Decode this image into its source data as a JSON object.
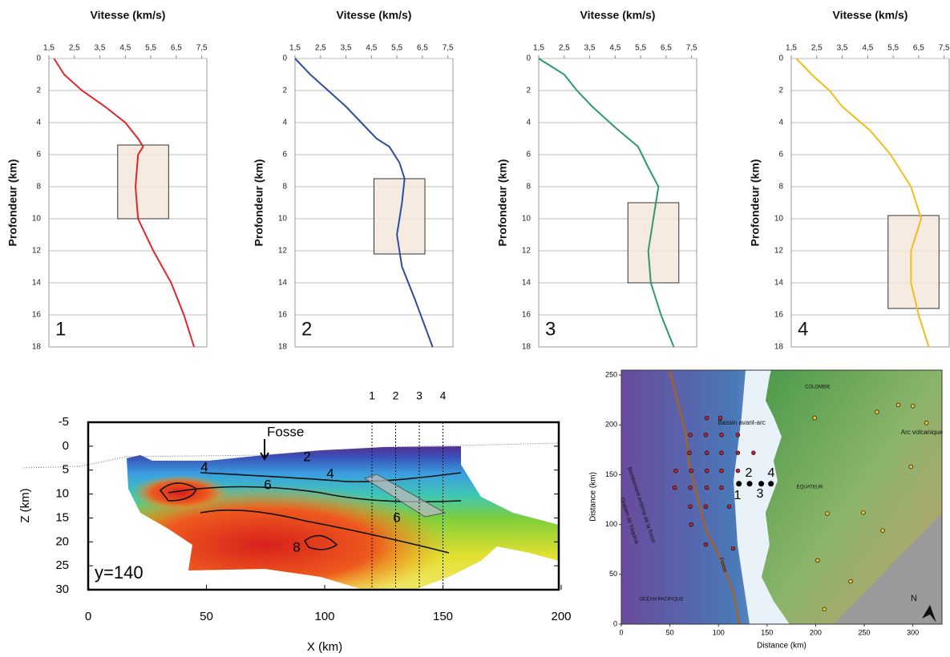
{
  "chart_data": [
    {
      "type": "profile",
      "title": "Vitesse (km/s)",
      "ylabel": "Profondeur (km)",
      "panel": "1",
      "color": "#e0262a",
      "x": [
        1.7,
        2.1,
        2.8,
        3.7,
        4.5,
        5.0,
        5.2,
        5.0,
        4.9,
        5.0,
        5.6,
        6.3,
        6.8,
        7.2
      ],
      "values": [
        0,
        1,
        2,
        3,
        4,
        5,
        5.5,
        6,
        8,
        10,
        12,
        14,
        16,
        18
      ],
      "highlight": {
        "x": [
          4.2,
          6.2
        ],
        "y": [
          5.4,
          10.0
        ]
      },
      "xlim": [
        1.5,
        7.7
      ],
      "xticks": [
        {
          "value": 1.5,
          "label": "1,5"
        },
        {
          "value": 2.5,
          "label": "2,5"
        },
        {
          "value": 3.5,
          "label": "3,5"
        },
        {
          "value": 4.5,
          "label": "4,5"
        },
        {
          "value": 5.5,
          "label": "5,5"
        },
        {
          "value": 6.5,
          "label": "6,5"
        },
        {
          "value": 7.5,
          "label": "7,5"
        }
      ],
      "ylim": [
        0,
        18
      ],
      "yticks": [
        0,
        2,
        4,
        6,
        8,
        10,
        12,
        14,
        16,
        18
      ],
      "y_inverted": true,
      "grid": true
    },
    {
      "type": "profile",
      "title": "Vitesse (km/s)",
      "ylabel": "Profondeur (km)",
      "panel": "2",
      "color": "#2e4d9c",
      "x": [
        1.5,
        2.1,
        2.8,
        3.5,
        4.1,
        4.7,
        5.2,
        5.6,
        5.8,
        5.7,
        5.5,
        5.7,
        6.2,
        6.9
      ],
      "values": [
        0,
        1,
        2,
        3,
        4,
        5,
        5.5,
        6.5,
        7.5,
        9,
        11,
        13,
        15,
        18
      ],
      "highlight": {
        "x": [
          4.6,
          6.6
        ],
        "y": [
          7.5,
          12.2
        ]
      },
      "xlim": [
        1.5,
        7.7
      ],
      "xticks": [
        {
          "value": 1.5,
          "label": "1,5"
        },
        {
          "value": 2.5,
          "label": "2,5"
        },
        {
          "value": 3.5,
          "label": "3,5"
        },
        {
          "value": 4.5,
          "label": "4,5"
        },
        {
          "value": 5.5,
          "label": "5,5"
        },
        {
          "value": 6.5,
          "label": "6,5"
        },
        {
          "value": 7.5,
          "label": "7,5"
        }
      ],
      "ylim": [
        0,
        18
      ],
      "yticks": [
        0,
        2,
        4,
        6,
        8,
        10,
        12,
        14,
        16,
        18
      ],
      "y_inverted": true,
      "grid": true
    },
    {
      "type": "profile",
      "title": "Vitesse (km/s)",
      "ylabel": "Profondeur (km)",
      "panel": "3",
      "color": "#2e9a68",
      "x": [
        1.5,
        2.5,
        3.0,
        3.6,
        4.5,
        5.4,
        5.8,
        6.2,
        6.0,
        5.8,
        5.9,
        6.3,
        6.8
      ],
      "values": [
        0,
        1,
        2,
        3,
        4.3,
        5.5,
        6.8,
        8,
        10,
        12,
        14,
        16,
        18
      ],
      "highlight": {
        "x": [
          5.0,
          7.0
        ],
        "y": [
          9.0,
          14.0
        ]
      },
      "xlim": [
        1.5,
        7.7
      ],
      "xticks": [
        {
          "value": 1.5,
          "label": "1,5"
        },
        {
          "value": 2.5,
          "label": "2,5"
        },
        {
          "value": 3.5,
          "label": "3,5"
        },
        {
          "value": 4.5,
          "label": "4,5"
        },
        {
          "value": 5.5,
          "label": "5,5"
        },
        {
          "value": 6.5,
          "label": "6,5"
        },
        {
          "value": 7.5,
          "label": "7,5"
        }
      ],
      "ylim": [
        0,
        18
      ],
      "yticks": [
        0,
        2,
        4,
        6,
        8,
        10,
        12,
        14,
        16,
        18
      ],
      "y_inverted": true,
      "grid": true
    },
    {
      "type": "profile",
      "title": "Vitesse (km/s)",
      "ylabel": "Profondeur (km)",
      "panel": "4",
      "color": "#f2bc1b",
      "x": [
        1.7,
        2.3,
        3.0,
        3.5,
        4.6,
        5.4,
        5.8,
        6.2,
        6.6,
        6.2,
        6.2,
        6.5,
        6.9
      ],
      "values": [
        0,
        1,
        2,
        3,
        4.5,
        6,
        7,
        8,
        10,
        12,
        14,
        16,
        18
      ],
      "highlight": {
        "x": [
          5.3,
          7.3
        ],
        "y": [
          9.8,
          15.6
        ]
      },
      "xlim": [
        1.5,
        7.7
      ],
      "xticks": [
        {
          "value": 1.5,
          "label": "1,5"
        },
        {
          "value": 2.5,
          "label": "2,5"
        },
        {
          "value": 3.5,
          "label": "3,5"
        },
        {
          "value": 4.5,
          "label": "4,5"
        },
        {
          "value": 5.5,
          "label": "5,5"
        },
        {
          "value": 6.5,
          "label": "6,5"
        },
        {
          "value": 7.5,
          "label": "7,5"
        }
      ],
      "ylim": [
        0,
        18
      ],
      "yticks": [
        0,
        2,
        4,
        6,
        8,
        10,
        12,
        14,
        16,
        18
      ],
      "y_inverted": true,
      "grid": true
    },
    {
      "type": "section",
      "xlabel": "X (km)",
      "ylabel": "Z (km)",
      "xlim": [
        0,
        200
      ],
      "xticks": [
        0,
        50,
        100,
        150,
        200
      ],
      "ylim": [
        -5,
        30
      ],
      "yticks": [
        -5,
        0,
        5,
        10,
        15,
        20,
        25,
        30
      ],
      "y_inverted": true,
      "annotations": [
        "Fosse",
        "y=140"
      ],
      "profiles": {
        "x": [
          120,
          130,
          140,
          150
        ],
        "labels": [
          "1",
          "2",
          "3",
          "4"
        ]
      },
      "contour_labels": [
        2,
        4,
        4,
        6,
        6,
        8
      ]
    },
    {
      "type": "map",
      "xlabel": "Distance (km)",
      "ylabel": "Distance (km)",
      "xlim": [
        0,
        330
      ],
      "xticks": [
        0,
        50,
        100,
        150,
        200,
        250,
        300
      ],
      "ylim": [
        0,
        255
      ],
      "yticks": [
        0,
        50,
        100,
        150,
        200,
        250
      ],
      "labels": [
        "COLOMBIE",
        "Bassin avant-arc",
        "Arc volcanique",
        "ÉQUATEUR",
        "Graben de Yaquina",
        "Bombement externe de la fosse",
        "Fosse",
        "OCÉAN PACIFIQUE",
        "N"
      ],
      "series": [
        {
          "color": "#c0272d",
          "x": [
            88,
            102,
            71,
            87,
            103,
            120,
            70,
            88,
            103,
            120,
            136,
            56,
            72,
            88,
            103,
            120,
            55,
            71,
            88,
            103,
            71,
            87,
            111,
            72,
            87,
            115
          ],
          "values": [
            207,
            207,
            190,
            190,
            190,
            190,
            172,
            172,
            172,
            172,
            172,
            154,
            154,
            154,
            154,
            154,
            137,
            137,
            137,
            137,
            118,
            118,
            118,
            100,
            80,
            76
          ]
        },
        {
          "color": "#f2c12e",
          "x": [
            199,
            263,
            285,
            300,
            314,
            298,
            212,
            249,
            269,
            202,
            236,
            209
          ],
          "values": [
            207,
            213,
            220,
            219,
            202,
            158,
            111,
            112,
            94,
            64,
            43,
            15
          ]
        },
        {
          "color": "#000000",
          "x": [
            121,
            132,
            144,
            154
          ],
          "values": [
            141,
            141,
            141,
            141
          ]
        }
      ],
      "station_labels": [
        "1",
        "2",
        "3",
        "4"
      ]
    }
  ]
}
